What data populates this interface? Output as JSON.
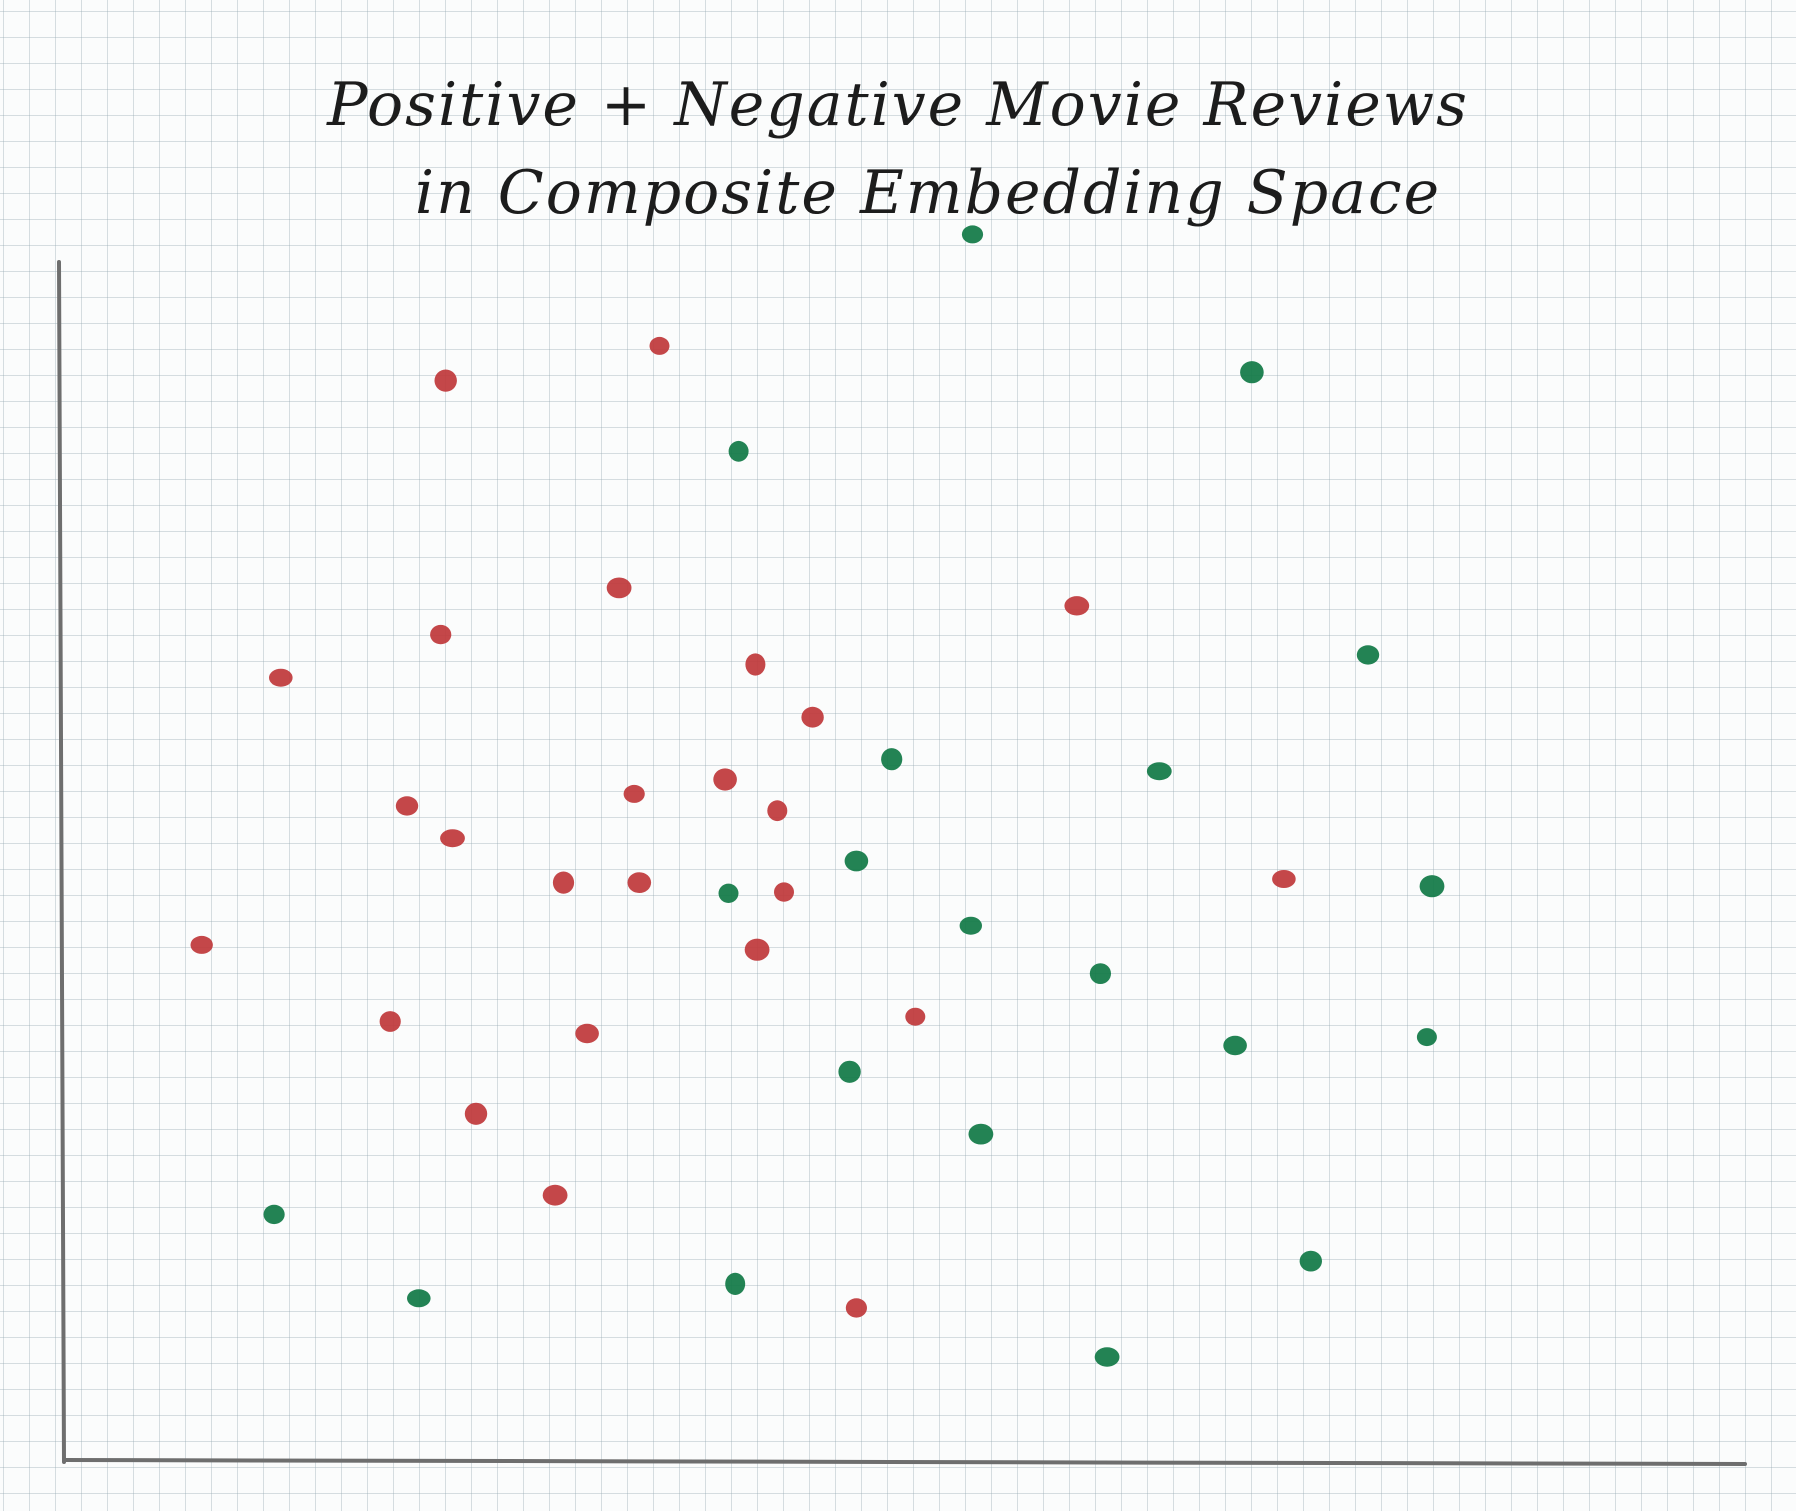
{
  "chart_data": {
    "type": "scatter",
    "title_lines": [
      "Positive + Negative Movie Reviews",
      "in Composite Embedding Space"
    ],
    "xlabel": "",
    "ylabel": "",
    "xlim": [
      0,
      100
    ],
    "ylim": [
      0,
      100
    ],
    "grid": true,
    "legend": "none",
    "series": [
      {
        "color": "#c0393b",
        "points": [
          [
            35.5,
            93.0
          ],
          [
            22.8,
            90.1
          ],
          [
            33.1,
            72.8
          ],
          [
            22.5,
            68.9
          ],
          [
            13.0,
            65.3
          ],
          [
            41.2,
            66.4
          ],
          [
            44.6,
            62.0
          ],
          [
            60.3,
            71.3
          ],
          [
            34.0,
            55.6
          ],
          [
            39.4,
            56.8
          ],
          [
            42.5,
            54.2
          ],
          [
            20.5,
            54.6
          ],
          [
            23.2,
            51.9
          ],
          [
            29.8,
            48.2
          ],
          [
            34.3,
            48.2
          ],
          [
            42.9,
            47.4
          ],
          [
            8.3,
            43.0
          ],
          [
            41.3,
            42.6
          ],
          [
            19.5,
            36.6
          ],
          [
            31.2,
            35.6
          ],
          [
            50.7,
            37.0
          ],
          [
            24.6,
            28.9
          ],
          [
            29.3,
            22.1
          ],
          [
            47.2,
            12.7
          ],
          [
            72.6,
            48.5
          ]
        ]
      },
      {
        "color": "#127a47",
        "points": [
          [
            54.1,
            102.3
          ],
          [
            70.7,
            90.8
          ],
          [
            40.2,
            84.2
          ],
          [
            77.6,
            67.2
          ],
          [
            65.2,
            57.5
          ],
          [
            49.3,
            58.5
          ],
          [
            47.2,
            50.0
          ],
          [
            39.6,
            47.3
          ],
          [
            54.0,
            44.6
          ],
          [
            81.4,
            47.9
          ],
          [
            61.7,
            40.6
          ],
          [
            69.7,
            34.6
          ],
          [
            81.1,
            35.3
          ],
          [
            46.8,
            32.4
          ],
          [
            54.6,
            27.2
          ],
          [
            12.6,
            20.5
          ],
          [
            21.2,
            13.5
          ],
          [
            40.0,
            14.7
          ],
          [
            74.2,
            16.6
          ],
          [
            62.1,
            8.6
          ]
        ]
      }
    ]
  }
}
